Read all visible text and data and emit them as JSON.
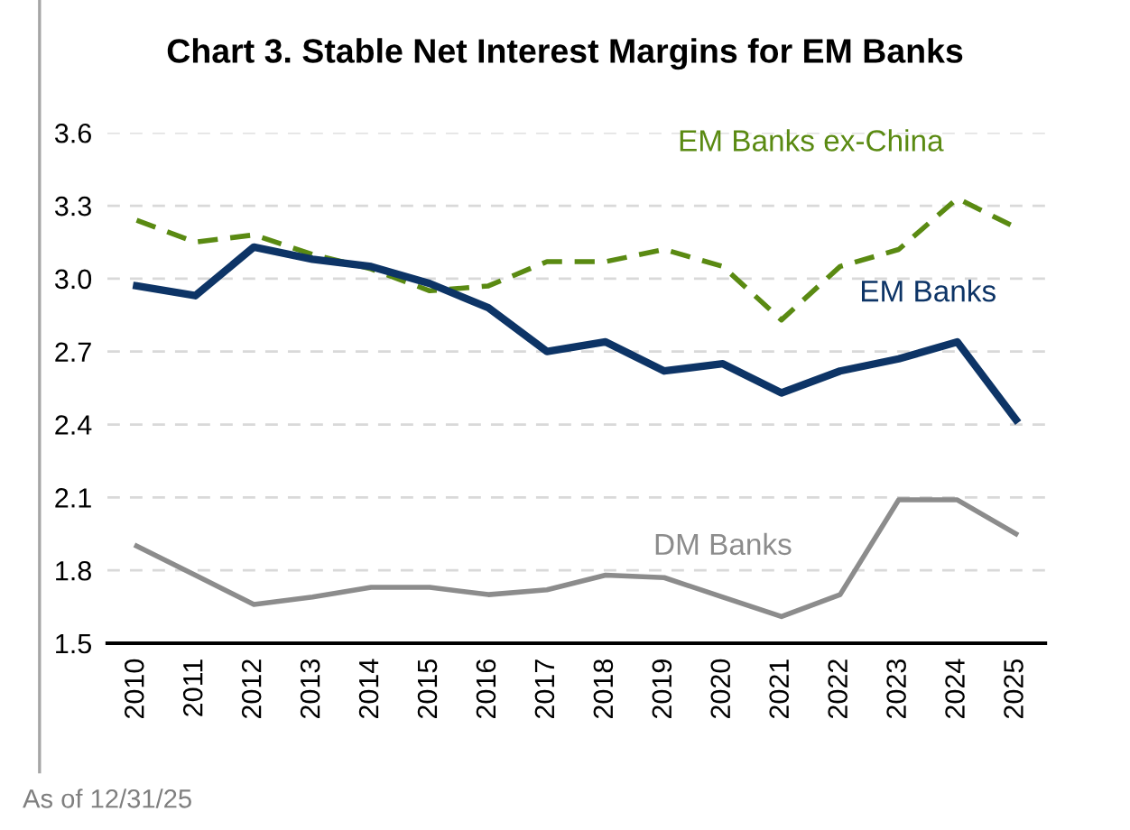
{
  "chart_data": {
    "type": "line",
    "title": "Chart 3. Stable Net Interest Margins for EM Banks",
    "categories": [
      "2010",
      "2011",
      "2012",
      "2013",
      "2014",
      "2015",
      "2016",
      "2017",
      "2018",
      "2019",
      "2020",
      "2021",
      "2022",
      "2023",
      "2024",
      "2025"
    ],
    "series": [
      {
        "name": "EM Banks ex-China",
        "color": "#5a8a12",
        "line_style": "dashed",
        "values": [
          3.24,
          3.15,
          3.18,
          3.1,
          3.04,
          2.95,
          2.97,
          3.07,
          3.07,
          3.12,
          3.05,
          2.83,
          3.05,
          3.12,
          3.33,
          3.21
        ]
      },
      {
        "name": "EM Banks",
        "color": "#0d3466",
        "line_style": "solid",
        "values": [
          2.97,
          2.93,
          3.13,
          3.08,
          3.05,
          2.98,
          2.88,
          2.7,
          2.74,
          2.62,
          2.65,
          2.53,
          2.62,
          2.67,
          2.74,
          2.42
        ]
      },
      {
        "name": "DM Banks",
        "color": "#8c8c8c",
        "line_style": "solid",
        "values": [
          1.9,
          1.78,
          1.66,
          1.69,
          1.73,
          1.73,
          1.7,
          1.72,
          1.78,
          1.77,
          1.69,
          1.61,
          1.7,
          2.09,
          2.09,
          1.95
        ]
      }
    ],
    "ylim": [
      1.5,
      3.6
    ],
    "yticks": [
      {
        "value": 1.5,
        "label": "1.5"
      },
      {
        "value": 1.8,
        "label": "1.8"
      },
      {
        "value": 2.1,
        "label": "2.1"
      },
      {
        "value": 2.4,
        "label": "2.4"
      },
      {
        "value": 2.7,
        "label": "2.7"
      },
      {
        "value": 3.0,
        "label": "3.0"
      },
      {
        "value": 3.3,
        "label": "3.3"
      },
      {
        "value": 3.6,
        "label": "3.6"
      }
    ],
    "grid": "y",
    "legend": false,
    "marker": "none",
    "annotations": [
      "As of 12/31/25"
    ]
  }
}
